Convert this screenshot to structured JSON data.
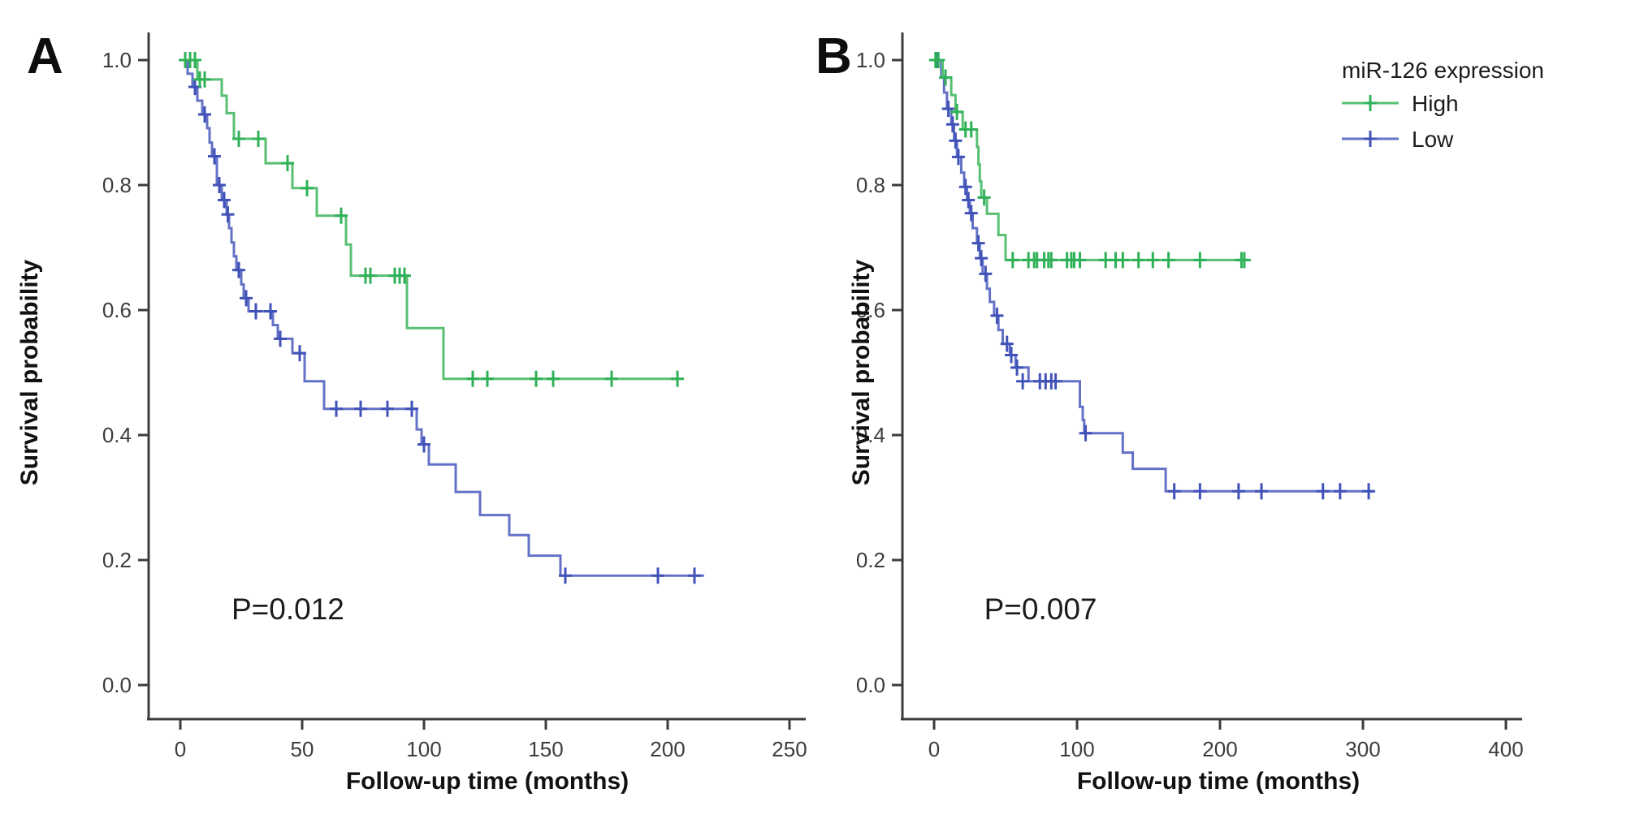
{
  "figure": {
    "background": "#ffffff",
    "legend": {
      "title": "miR-126 expression",
      "items": [
        {
          "label": "High",
          "color": "#58bf73",
          "marker_color": "#2fb157"
        },
        {
          "label": "Low",
          "color": "#6371c6",
          "marker_color": "#4152b8"
        }
      ]
    },
    "colors": {
      "axis": "#3c3c3c",
      "tick_text": "#3d3d3d",
      "label_text": "#111111",
      "annotation_text": "#1c1c1c"
    }
  },
  "chart_data": [
    {
      "type": "line",
      "subtype": "kaplan-meier-step",
      "panel_letter": "A",
      "xlabel": "Follow-up time (months)",
      "ylabel": "Survival probability",
      "xticks": [
        0,
        50,
        100,
        150,
        200,
        250
      ],
      "yticks": [
        0.0,
        0.2,
        0.4,
        0.6,
        0.8,
        1.0
      ],
      "xlim": [
        0,
        255
      ],
      "ylim": [
        0,
        1
      ],
      "grid": false,
      "annotation": {
        "text": "P=0.012",
        "x_months": 21,
        "y_prob": 0.105
      },
      "series": [
        {
          "name": "High",
          "color": "#58bf73",
          "marker_color": "#2fb157",
          "end_time": 205,
          "steps": [
            [
              0,
              1.0
            ],
            [
              7,
              0.969
            ],
            [
              17,
              0.943
            ],
            [
              19,
              0.915
            ],
            [
              22,
              0.874
            ],
            [
              35,
              0.835
            ],
            [
              46,
              0.795
            ],
            [
              56,
              0.751
            ],
            [
              68,
              0.705
            ],
            [
              70,
              0.655
            ],
            [
              93,
              0.571
            ],
            [
              108,
              0.49
            ]
          ],
          "censors": [
            [
              2,
              1.0
            ],
            [
              4,
              1.0
            ],
            [
              6,
              1.0
            ],
            [
              8,
              0.969
            ],
            [
              10,
              0.969
            ],
            [
              24,
              0.874
            ],
            [
              32,
              0.874
            ],
            [
              44,
              0.835
            ],
            [
              52,
              0.795
            ],
            [
              66,
              0.751
            ],
            [
              76,
              0.655
            ],
            [
              78,
              0.655
            ],
            [
              88,
              0.655
            ],
            [
              90,
              0.655
            ],
            [
              92,
              0.655
            ],
            [
              120,
              0.49
            ],
            [
              126,
              0.49
            ],
            [
              146,
              0.49
            ],
            [
              153,
              0.49
            ],
            [
              177,
              0.49
            ],
            [
              204,
              0.49
            ]
          ]
        },
        {
          "name": "Low",
          "color": "#6371c6",
          "marker_color": "#4152b8",
          "end_time": 215,
          "steps": [
            [
              0,
              1.0
            ],
            [
              3,
              0.978
            ],
            [
              5,
              0.957
            ],
            [
              7,
              0.935
            ],
            [
              9,
              0.913
            ],
            [
              11,
              0.891
            ],
            [
              12,
              0.868
            ],
            [
              13,
              0.846
            ],
            [
              15,
              0.8
            ],
            [
              17,
              0.776
            ],
            [
              19,
              0.753
            ],
            [
              20,
              0.731
            ],
            [
              21,
              0.708
            ],
            [
              22,
              0.686
            ],
            [
              23,
              0.664
            ],
            [
              25,
              0.641
            ],
            [
              26,
              0.619
            ],
            [
              28,
              0.598
            ],
            [
              38,
              0.576
            ],
            [
              40,
              0.554
            ],
            [
              46,
              0.531
            ],
            [
              51,
              0.486
            ],
            [
              59,
              0.442
            ],
            [
              97,
              0.409
            ],
            [
              99,
              0.385
            ],
            [
              102,
              0.353
            ],
            [
              113,
              0.309
            ],
            [
              123,
              0.272
            ],
            [
              135,
              0.24
            ],
            [
              143,
              0.207
            ],
            [
              156,
              0.175
            ]
          ],
          "censors": [
            [
              6,
              0.957
            ],
            [
              10,
              0.913
            ],
            [
              14,
              0.846
            ],
            [
              16,
              0.8
            ],
            [
              18,
              0.776
            ],
            [
              19.5,
              0.753
            ],
            [
              24,
              0.664
            ],
            [
              27,
              0.619
            ],
            [
              31,
              0.598
            ],
            [
              37,
              0.598
            ],
            [
              41,
              0.554
            ],
            [
              49,
              0.531
            ],
            [
              64,
              0.442
            ],
            [
              74,
              0.442
            ],
            [
              85,
              0.442
            ],
            [
              95,
              0.442
            ],
            [
              100,
              0.385
            ],
            [
              158,
              0.175
            ],
            [
              196,
              0.175
            ],
            [
              211,
              0.175
            ]
          ]
        }
      ]
    },
    {
      "type": "line",
      "subtype": "kaplan-meier-step",
      "panel_letter": "B",
      "xlabel": "Follow-up time (months)",
      "ylabel": "Survival probability",
      "xticks": [
        0,
        100,
        200,
        300,
        400
      ],
      "yticks": [
        0.0,
        0.2,
        0.4,
        0.6,
        0.8,
        1.0
      ],
      "xlim": [
        0,
        410
      ],
      "ylim": [
        0,
        1
      ],
      "grid": false,
      "annotation": {
        "text": "P=0.007",
        "x_months": 35,
        "y_prob": 0.105
      },
      "series": [
        {
          "name": "High",
          "color": "#58bf73",
          "marker_color": "#2fb157",
          "end_time": 219,
          "steps": [
            [
              0,
              1.0
            ],
            [
              6,
              0.972
            ],
            [
              12,
              0.944
            ],
            [
              15,
              0.917
            ],
            [
              20,
              0.889
            ],
            [
              30,
              0.861
            ],
            [
              31,
              0.833
            ],
            [
              32,
              0.806
            ],
            [
              33,
              0.78
            ],
            [
              37,
              0.754
            ],
            [
              45,
              0.72
            ],
            [
              50,
              0.68
            ]
          ],
          "censors": [
            [
              1,
              1.0
            ],
            [
              3,
              1.0
            ],
            [
              8,
              0.972
            ],
            [
              16,
              0.917
            ],
            [
              22,
              0.889
            ],
            [
              26,
              0.889
            ],
            [
              35,
              0.78
            ],
            [
              55,
              0.68
            ],
            [
              66,
              0.68
            ],
            [
              70,
              0.68
            ],
            [
              72,
              0.68
            ],
            [
              77,
              0.68
            ],
            [
              80,
              0.68
            ],
            [
              82,
              0.68
            ],
            [
              93,
              0.68
            ],
            [
              96,
              0.68
            ],
            [
              98,
              0.68
            ],
            [
              102,
              0.68
            ],
            [
              120,
              0.68
            ],
            [
              127,
              0.68
            ],
            [
              132,
              0.68
            ],
            [
              143,
              0.68
            ],
            [
              153,
              0.68
            ],
            [
              164,
              0.68
            ],
            [
              186,
              0.68
            ],
            [
              215,
              0.68
            ],
            [
              217,
              0.68
            ]
          ]
        },
        {
          "name": "Low",
          "color": "#6371c6",
          "marker_color": "#4152b8",
          "end_time": 307,
          "steps": [
            [
              0,
              1.0
            ],
            [
              5,
              0.974
            ],
            [
              7,
              0.948
            ],
            [
              9,
              0.922
            ],
            [
              12,
              0.897
            ],
            [
              14,
              0.871
            ],
            [
              16,
              0.845
            ],
            [
              19,
              0.82
            ],
            [
              21,
              0.797
            ],
            [
              23,
              0.776
            ],
            [
              25,
              0.755
            ],
            [
              27,
              0.731
            ],
            [
              30,
              0.707
            ],
            [
              32,
              0.683
            ],
            [
              34,
              0.658
            ],
            [
              37,
              0.634
            ],
            [
              39,
              0.613
            ],
            [
              42,
              0.591
            ],
            [
              45,
              0.568
            ],
            [
              48,
              0.546
            ],
            [
              53,
              0.528
            ],
            [
              57,
              0.508
            ],
            [
              66,
              0.486
            ],
            [
              102,
              0.445
            ],
            [
              104,
              0.424
            ],
            [
              105,
              0.403
            ],
            [
              132,
              0.372
            ],
            [
              139,
              0.346
            ],
            [
              162,
              0.31
            ]
          ],
          "censors": [
            [
              2,
              1.0
            ],
            [
              10,
              0.922
            ],
            [
              13,
              0.897
            ],
            [
              15,
              0.871
            ],
            [
              17,
              0.845
            ],
            [
              22,
              0.797
            ],
            [
              24,
              0.776
            ],
            [
              26,
              0.755
            ],
            [
              31,
              0.707
            ],
            [
              33,
              0.683
            ],
            [
              36,
              0.658
            ],
            [
              44,
              0.591
            ],
            [
              51,
              0.546
            ],
            [
              54,
              0.528
            ],
            [
              58,
              0.508
            ],
            [
              62,
              0.486
            ],
            [
              74,
              0.486
            ],
            [
              78,
              0.486
            ],
            [
              82,
              0.486
            ],
            [
              85,
              0.486
            ],
            [
              106,
              0.403
            ],
            [
              168,
              0.31
            ],
            [
              186,
              0.31
            ],
            [
              213,
              0.31
            ],
            [
              229,
              0.31
            ],
            [
              272,
              0.31
            ],
            [
              284,
              0.31
            ],
            [
              304,
              0.31
            ]
          ]
        }
      ]
    }
  ]
}
